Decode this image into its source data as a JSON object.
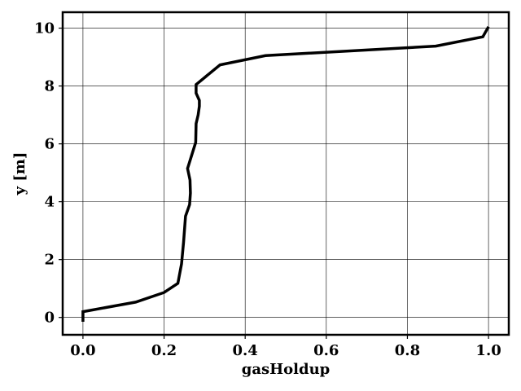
{
  "chart_data": {
    "type": "line",
    "title": "",
    "xlabel": "gasHoldup",
    "ylabel": "y [m]",
    "xlim": [
      -0.05,
      1.05
    ],
    "ylim": [
      -0.6,
      10.55
    ],
    "xticks": [
      0.0,
      0.2,
      0.4,
      0.6,
      0.8,
      1.0
    ],
    "xtick_labels": [
      "0.0",
      "0.2",
      "0.4",
      "0.6",
      "0.8",
      "1.0"
    ],
    "yticks": [
      0,
      2,
      4,
      6,
      8,
      10
    ],
    "ytick_labels": [
      "0",
      "2",
      "4",
      "6",
      "8",
      "10"
    ],
    "grid": true,
    "legend": "none",
    "series": [
      {
        "color": "#000000",
        "x": [
          0.0,
          0.0,
          0.13,
          0.2,
          0.234,
          0.243,
          0.248,
          0.253,
          0.263,
          0.265,
          0.264,
          0.258,
          0.268,
          0.278,
          0.279,
          0.284,
          0.287,
          0.287,
          0.279,
          0.279,
          0.338,
          0.45,
          0.87,
          0.986,
          1.0
        ],
        "y": [
          -0.15,
          0.2,
          0.53,
          0.86,
          1.18,
          1.85,
          2.6,
          3.5,
          3.9,
          4.3,
          4.75,
          5.15,
          5.6,
          6.05,
          6.7,
          7.0,
          7.3,
          7.5,
          7.75,
          8.05,
          8.73,
          9.05,
          9.38,
          9.7,
          10.05
        ]
      }
    ]
  }
}
